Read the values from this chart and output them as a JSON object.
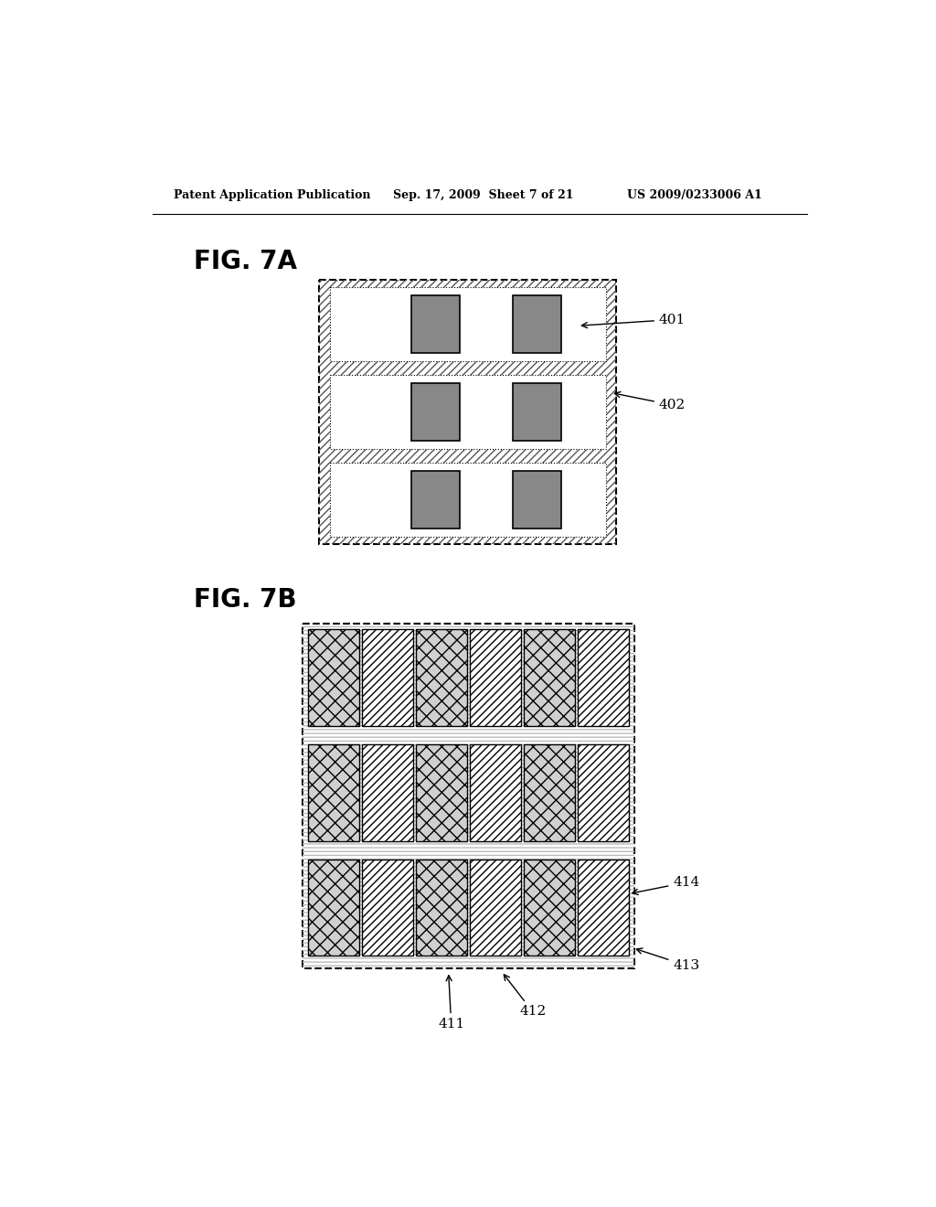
{
  "bg_color": "#ffffff",
  "header_text": "Patent Application Publication",
  "header_date": "Sep. 17, 2009  Sheet 7 of 21",
  "header_patent": "US 2009/0233006 A1",
  "fig7a_label": "FIG. 7A",
  "fig7b_label": "FIG. 7B",
  "label_401": "401",
  "label_402": "402",
  "label_411": "411",
  "label_412": "412",
  "label_413": "413",
  "label_414": "414",
  "gray_block": "#888888",
  "hatch_color_7a": "#555555",
  "hatch_color_7b": "#aaaaaa"
}
